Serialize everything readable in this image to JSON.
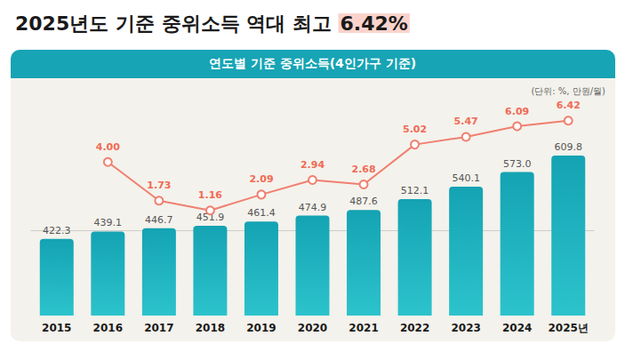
{
  "chart_data": {
    "type": "bar",
    "title": "2025년도 기준 중위소득 역대 최고 6.42%",
    "subtitle": "연도별 기준 중위소득(4인가구 기준)",
    "annotations": [
      "(단위: %, 만원/월)"
    ],
    "categories": [
      "2015",
      "2016",
      "2017",
      "2018",
      "2019",
      "2020",
      "2021",
      "2022",
      "2023",
      "2024",
      "2025년"
    ],
    "series": [
      {
        "type": "bar",
        "color": "#14a3b3",
        "values": [
          422.3,
          439.1,
          446.7,
          451.9,
          461.4,
          474.9,
          487.6,
          512.1,
          540.1,
          573.0,
          609.8
        ],
        "value_labels": [
          "422.3",
          "439.1",
          "446.7",
          "451.9",
          "461.4",
          "474.9",
          "487.6",
          "512.1",
          "540.1",
          "573.0",
          "609.8"
        ]
      },
      {
        "type": "line",
        "axis": "y2",
        "color": "#f07f70",
        "marker": "circle",
        "line_style": "solid",
        "values": [
          null,
          4.0,
          1.73,
          1.16,
          2.09,
          2.94,
          2.68,
          5.02,
          5.47,
          6.09,
          6.42
        ],
        "value_labels": [
          null,
          "4.00",
          "1.73",
          "1.16",
          "2.09",
          "2.94",
          "2.68",
          "5.02",
          "5.47",
          "6.09",
          "6.42"
        ]
      }
    ],
    "ylim": [
      250,
      730
    ],
    "yticks": [
      250,
      730
    ],
    "y2lim": [
      -5,
      7.5
    ],
    "y2ticks": [
      -5,
      7.5
    ],
    "grid": false,
    "data_labels": true,
    "tick_labels": "x"
  }
}
